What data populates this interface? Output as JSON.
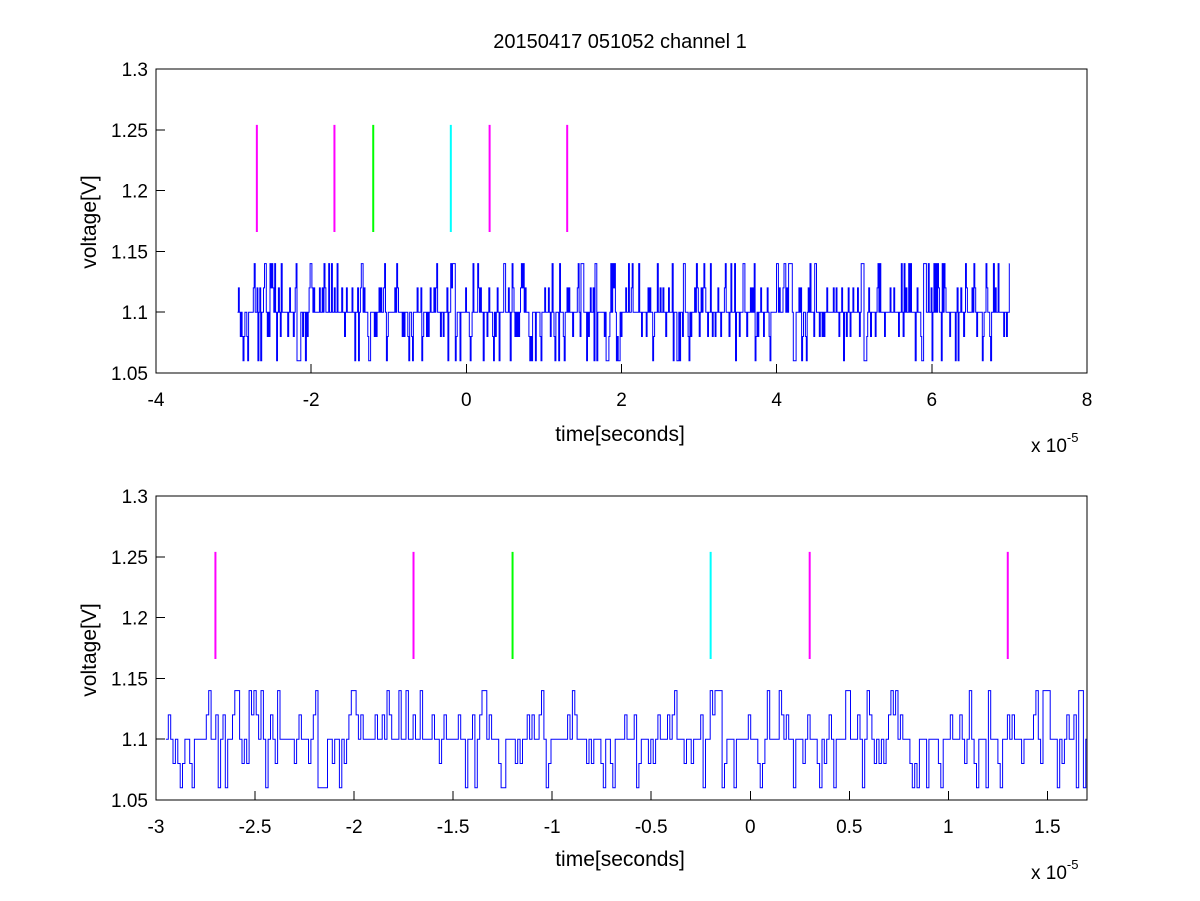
{
  "chart_data": [
    {
      "type": "line",
      "title": "20150417 051052 channel 1",
      "xlabel": "time[seconds]",
      "ylabel": "voltage[V]",
      "x_exponent_label": "x 10",
      "x_exponent": "-5",
      "xlim": [
        -4,
        8
      ],
      "ylim": [
        1.05,
        1.3
      ],
      "x_ticks": [
        "-4",
        "-2",
        "0",
        "2",
        "4",
        "6",
        "8"
      ],
      "y_ticks": [
        "1.05",
        "1.1",
        "1.15",
        "1.2",
        "1.25",
        "1.3"
      ],
      "grid": false,
      "trace_color": "#0000ff",
      "trace_x_range": [
        -2.95,
        7.0
      ],
      "trace_levels": [
        1.06,
        1.08,
        1.1,
        1.12,
        1.14
      ],
      "markers": [
        {
          "x": -2.7,
          "color": "#ff00ff",
          "y_range": [
            1.166,
            1.254
          ]
        },
        {
          "x": -1.7,
          "color": "#ff00ff",
          "y_range": [
            1.166,
            1.254
          ]
        },
        {
          "x": -1.2,
          "color": "#00ff00",
          "y_range": [
            1.166,
            1.254
          ]
        },
        {
          "x": -0.2,
          "color": "#00ffff",
          "y_range": [
            1.166,
            1.254
          ]
        },
        {
          "x": 0.3,
          "color": "#ff00ff",
          "y_range": [
            1.166,
            1.254
          ]
        },
        {
          "x": 1.3,
          "color": "#ff00ff",
          "y_range": [
            1.166,
            1.254
          ]
        }
      ]
    },
    {
      "type": "line",
      "xlabel": "time[seconds]",
      "ylabel": "voltage[V]",
      "x_exponent_label": "x 10",
      "x_exponent": "-5",
      "xlim": [
        -3.0,
        1.7
      ],
      "ylim": [
        1.05,
        1.3
      ],
      "x_ticks": [
        "-3",
        "-2.5",
        "-2",
        "-1.5",
        "-1",
        "-0.5",
        "0",
        "0.5",
        "1",
        "1.5"
      ],
      "y_ticks": [
        "1.05",
        "1.1",
        "1.15",
        "1.2",
        "1.25",
        "1.3"
      ],
      "grid": false,
      "trace_color": "#0000ff",
      "trace_x_range": [
        -2.95,
        1.7
      ],
      "trace_levels": [
        1.06,
        1.08,
        1.1,
        1.12,
        1.14
      ],
      "markers": [
        {
          "x": -2.7,
          "color": "#ff00ff",
          "y_range": [
            1.166,
            1.254
          ]
        },
        {
          "x": -1.7,
          "color": "#ff00ff",
          "y_range": [
            1.166,
            1.254
          ]
        },
        {
          "x": -1.2,
          "color": "#00ff00",
          "y_range": [
            1.166,
            1.254
          ]
        },
        {
          "x": -0.2,
          "color": "#00ffff",
          "y_range": [
            1.166,
            1.254
          ]
        },
        {
          "x": 0.3,
          "color": "#ff00ff",
          "y_range": [
            1.166,
            1.254
          ]
        },
        {
          "x": 1.3,
          "color": "#ff00ff",
          "y_range": [
            1.166,
            1.254
          ]
        }
      ]
    }
  ]
}
